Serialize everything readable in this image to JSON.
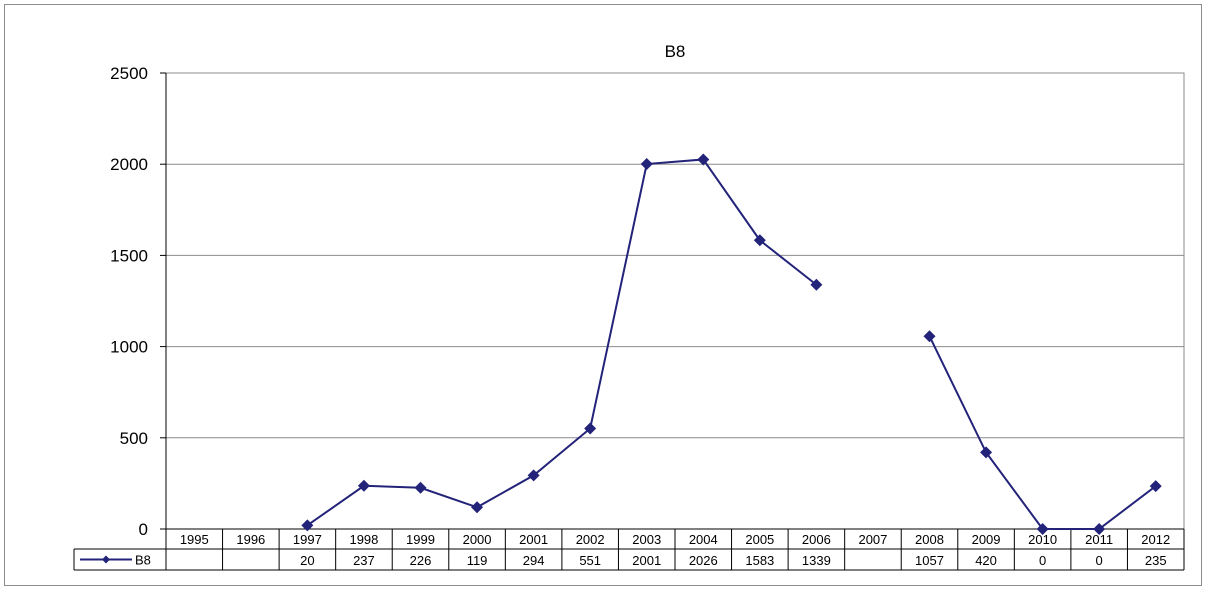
{
  "chart_data": {
    "type": "line",
    "title": "B8",
    "xlabel": "",
    "ylabel": "",
    "ylim": [
      0,
      2500
    ],
    "yticks": [
      0,
      500,
      1000,
      1500,
      2000,
      2500
    ],
    "grid": true,
    "legend": "data-table",
    "categories": [
      "1995",
      "1996",
      "1997",
      "1998",
      "1999",
      "2000",
      "2001",
      "2002",
      "2003",
      "2004",
      "2005",
      "2006",
      "2007",
      "2008",
      "2009",
      "2010",
      "2011",
      "2012"
    ],
    "series": [
      {
        "name": "B8",
        "color": "#23237a",
        "marker": "diamond",
        "values": [
          null,
          null,
          20,
          237,
          226,
          119,
          294,
          551,
          2001,
          2026,
          1583,
          1339,
          null,
          1057,
          420,
          0,
          0,
          235
        ]
      }
    ]
  }
}
